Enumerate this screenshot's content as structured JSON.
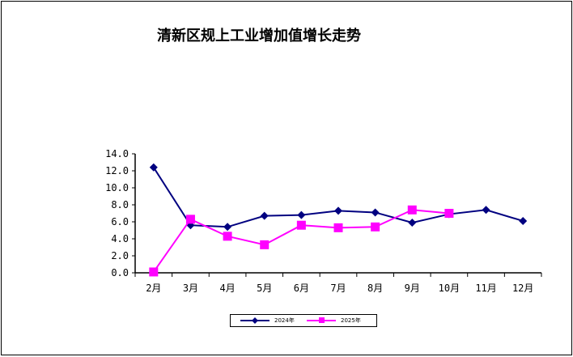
{
  "chart_data": {
    "type": "line",
    "title": "清新区规上工业增加值增长走势",
    "categories": [
      "2月",
      "3月",
      "4月",
      "5月",
      "6月",
      "7月",
      "8月",
      "9月",
      "10月",
      "11月",
      "12月"
    ],
    "ylim": [
      0,
      14
    ],
    "yticks": [
      "0.0",
      "2.0",
      "4.0",
      "6.0",
      "8.0",
      "10.0",
      "12.0",
      "14.0"
    ],
    "grid": false,
    "legend_position": "bottom",
    "series": [
      {
        "name": "2024年",
        "color": "#000080",
        "marker": "diamond",
        "values": [
          12.4,
          5.6,
          5.4,
          6.7,
          6.8,
          7.3,
          7.1,
          5.9,
          6.9,
          7.4,
          6.1
        ]
      },
      {
        "name": "2025年",
        "color": "#FF00FF",
        "marker": "square",
        "values": [
          0.1,
          6.3,
          4.3,
          3.3,
          5.6,
          5.3,
          5.4,
          7.4,
          7.0,
          null,
          null
        ]
      }
    ]
  }
}
